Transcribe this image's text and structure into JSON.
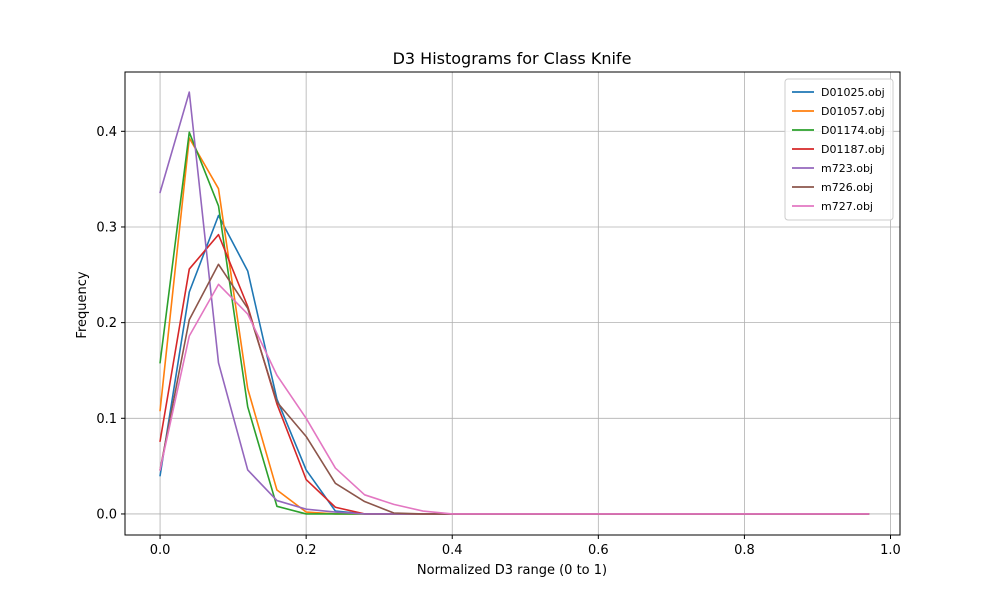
{
  "chart_data": {
    "type": "line",
    "title": "D3 Histograms for Class Knife",
    "xlabel": "Normalized D3 range (0 to 1)",
    "ylabel": "Frequency",
    "xlim": [
      -0.048,
      1.013
    ],
    "ylim": [
      -0.022,
      0.462
    ],
    "xticks": [
      0.0,
      0.2,
      0.4,
      0.6,
      0.8,
      1.0
    ],
    "xtick_labels": [
      "0.0",
      "0.2",
      "0.4",
      "0.6",
      "0.8",
      "1.0"
    ],
    "yticks": [
      0.0,
      0.1,
      0.2,
      0.3,
      0.4
    ],
    "ytick_labels": [
      "0.0",
      "0.1",
      "0.2",
      "0.3",
      "0.4"
    ],
    "grid": true,
    "legend_position": "top-right",
    "x": [
      0.0,
      0.04,
      0.08,
      0.12,
      0.16,
      0.2,
      0.24,
      0.28,
      0.32,
      0.36,
      0.4,
      0.44,
      0.48,
      0.52,
      0.56,
      0.6,
      0.64,
      0.68,
      0.72,
      0.76,
      0.8,
      0.84,
      0.88,
      0.92,
      0.97
    ],
    "series": [
      {
        "name": "D01025.obj",
        "color": "#1f77b4",
        "values": [
          0.04,
          0.232,
          0.312,
          0.254,
          0.12,
          0.046,
          0.003,
          0.0,
          0,
          0,
          0,
          0,
          0,
          0,
          0,
          0,
          0,
          0,
          0,
          0,
          0,
          0,
          0,
          0,
          0
        ]
      },
      {
        "name": "D01057.obj",
        "color": "#ff7f0e",
        "values": [
          0.108,
          0.393,
          0.34,
          0.131,
          0.025,
          0.002,
          0.0,
          0.0,
          0,
          0,
          0,
          0,
          0,
          0,
          0,
          0,
          0,
          0,
          0,
          0,
          0,
          0,
          0,
          0,
          0
        ]
      },
      {
        "name": "D01174.obj",
        "color": "#2ca02c",
        "values": [
          0.158,
          0.399,
          0.322,
          0.112,
          0.008,
          0.0,
          0.0,
          0.0,
          0,
          0,
          0,
          0,
          0,
          0,
          0,
          0,
          0,
          0,
          0,
          0,
          0,
          0,
          0,
          0,
          0
        ]
      },
      {
        "name": "D01187.obj",
        "color": "#d62728",
        "values": [
          0.076,
          0.256,
          0.292,
          0.217,
          0.115,
          0.036,
          0.007,
          0.0,
          0,
          0,
          0,
          0,
          0,
          0,
          0,
          0,
          0,
          0,
          0,
          0,
          0,
          0,
          0,
          0,
          0
        ]
      },
      {
        "name": "m723.obj",
        "color": "#9467bd",
        "values": [
          0.336,
          0.441,
          0.158,
          0.046,
          0.014,
          0.005,
          0.002,
          0.0,
          0,
          0,
          0,
          0,
          0,
          0,
          0,
          0,
          0,
          0,
          0,
          0,
          0,
          0,
          0,
          0,
          0
        ]
      },
      {
        "name": "m726.obj",
        "color": "#8c564b",
        "values": [
          0.046,
          0.203,
          0.261,
          0.215,
          0.117,
          0.081,
          0.032,
          0.013,
          0.001,
          0.0,
          0,
          0,
          0,
          0,
          0,
          0,
          0,
          0,
          0,
          0,
          0,
          0,
          0,
          0,
          0
        ]
      },
      {
        "name": "m727.obj",
        "color": "#e377c2",
        "values": [
          0.046,
          0.186,
          0.24,
          0.209,
          0.145,
          0.1,
          0.048,
          0.02,
          0.01,
          0.003,
          0.0,
          0,
          0,
          0,
          0,
          0,
          0,
          0,
          0,
          0,
          0,
          0,
          0,
          0,
          0
        ]
      }
    ]
  }
}
